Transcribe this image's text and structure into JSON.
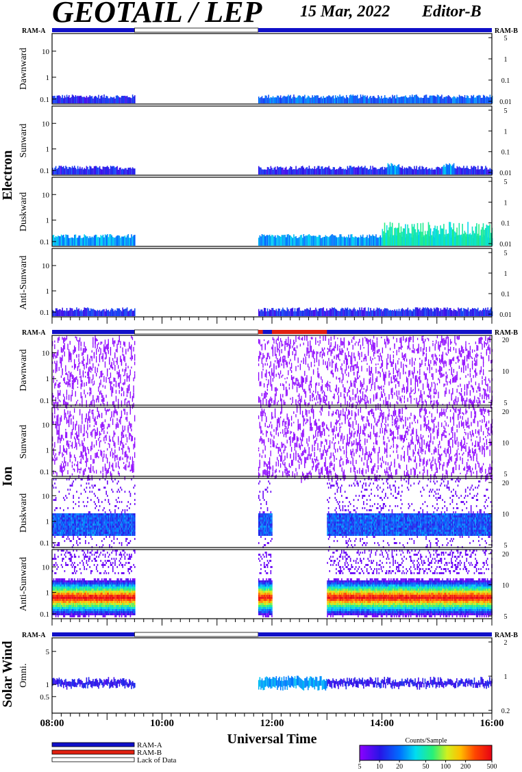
{
  "header": {
    "title": "GEOTAIL / LEP",
    "date": "15 Mar, 2022",
    "editor": "Editor-B"
  },
  "chart_data": {
    "type": "heatmap",
    "xlabel": "Universal Time",
    "xlim": [
      "08:00",
      "16:00"
    ],
    "x_ticks": [
      "08:00",
      "10:00",
      "12:00",
      "14:00",
      "16:00"
    ],
    "data_gaps": [
      [
        "09:30",
        "11:45"
      ]
    ],
    "mode_bar": {
      "left": "RAM-A",
      "right": "RAM-B"
    },
    "groups": [
      {
        "name": "Electron",
        "mode_bar_left": "RAM-A",
        "mode_bar_right": "RAM-B",
        "ram_b_intervals": [],
        "panels": [
          {
            "label": "Dawnward",
            "left_ticks": [
              "10",
              "1",
              "0.1"
            ],
            "right_ticks": [
              "5",
              "1",
              "0.1",
              "0.01"
            ],
            "activity": [
              [
                8.0,
                9.5,
                "low"
              ],
              [
                11.75,
                16.0,
                "low-medium"
              ]
            ]
          },
          {
            "label": "Sunward",
            "left_ticks": [
              "10",
              "1",
              "0.1"
            ],
            "right_ticks": [
              "5",
              "1",
              "0.1",
              "0.01"
            ],
            "activity": [
              [
                8.0,
                9.5,
                "low"
              ],
              [
                11.75,
                16.0,
                "low"
              ],
              [
                14.1,
                14.3,
                "medium"
              ],
              [
                15.1,
                15.3,
                "medium"
              ]
            ]
          },
          {
            "label": "Duskward",
            "left_ticks": [
              "10",
              "1",
              "0.1"
            ],
            "right_ticks": [
              "5",
              "1",
              "0.1",
              "0.01"
            ],
            "activity": [
              [
                8.0,
                9.5,
                "medium"
              ],
              [
                11.75,
                16.0,
                "medium"
              ],
              [
                14.0,
                16.0,
                "medium-high"
              ]
            ]
          },
          {
            "label": "Anti-Sunward",
            "left_ticks": [
              "10",
              "1",
              "0.1"
            ],
            "right_ticks": [
              "5",
              "1",
              "0.1",
              "0.01"
            ],
            "activity": [
              [
                8.0,
                9.5,
                "low"
              ],
              [
                11.75,
                16.0,
                "low"
              ]
            ]
          }
        ]
      },
      {
        "name": "Ion",
        "mode_bar_left": "RAM-A",
        "mode_bar_right": "RAM-B",
        "ram_b_intervals": [
          [
            "11:45",
            "11:50"
          ],
          [
            "12:00",
            "13:00"
          ]
        ],
        "panels": [
          {
            "label": "Dawnward",
            "left_ticks": [
              "10",
              "1",
              "0.1"
            ],
            "right_ticks": [
              "20",
              "10",
              "5"
            ],
            "activity": [
              [
                8.0,
                9.5,
                "sparse"
              ],
              [
                11.75,
                16.0,
                "sparse"
              ]
            ]
          },
          {
            "label": "Sunward",
            "left_ticks": [
              "10",
              "1",
              "0.1"
            ],
            "right_ticks": [
              "20",
              "10",
              "5"
            ],
            "activity": [
              [
                8.0,
                9.5,
                "sparse"
              ],
              [
                11.75,
                16.0,
                "sparse"
              ]
            ]
          },
          {
            "label": "Duskward",
            "left_ticks": [
              "10",
              "1",
              "0.1"
            ],
            "right_ticks": [
              "20",
              "10",
              "5"
            ],
            "activity": [
              [
                8.0,
                9.5,
                "low"
              ],
              [
                11.75,
                12.0,
                "medium"
              ],
              [
                13.0,
                16.0,
                "medium"
              ]
            ]
          },
          {
            "label": "Anti-Sunward",
            "left_ticks": [
              "10",
              "1",
              "0.1"
            ],
            "right_ticks": [
              "20",
              "10",
              "5"
            ],
            "activity": [
              [
                8.0,
                9.5,
                "high"
              ],
              [
                11.75,
                12.0,
                "high"
              ],
              [
                13.0,
                16.0,
                "high"
              ]
            ]
          }
        ]
      },
      {
        "name": "Solar Wind",
        "mode_bar_left": "RAM-A",
        "mode_bar_right": "RAM-B",
        "ram_b_intervals": [],
        "panels": [
          {
            "label": "Omni.",
            "left_ticks": [
              "5",
              "1",
              "0.5"
            ],
            "right_ticks": [
              "2",
              "1",
              "0.2"
            ],
            "activity": [
              [
                8.0,
                9.5,
                "low"
              ],
              [
                11.75,
                13.0,
                "medium"
              ],
              [
                13.0,
                16.0,
                "low"
              ]
            ]
          }
        ]
      }
    ],
    "legend": {
      "items": [
        {
          "label": "RAM-A",
          "color": "#1010c8"
        },
        {
          "label": "RAM-B",
          "color": "#e02010"
        },
        {
          "label": "Lack of Data",
          "color": "#ffffff"
        }
      ]
    },
    "colorbar": {
      "title": "Counts/Sample",
      "ticks": [
        "5",
        "10",
        "20",
        "50",
        "100",
        "200",
        "500"
      ],
      "scale": "log",
      "range": [
        5,
        500
      ]
    }
  }
}
